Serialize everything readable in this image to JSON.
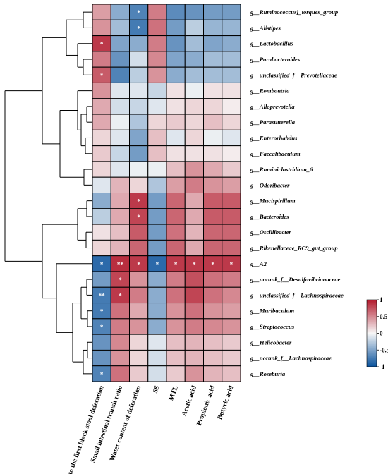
{
  "colors": {
    "negative": "#08519c",
    "neutral": "#f7f7f7",
    "positive": "#b2182b",
    "cell_border": "#000000",
    "star": "#ffffff",
    "dendrogram": "#000000"
  },
  "chart_data": {
    "type": "heatmap",
    "title": "",
    "rows": [
      "g__Ruminococcus]_torques_group",
      "g__Alistipes",
      "g__Lactobacillus",
      "g__Parabacteroides",
      "g__unclassified_f__Prevotellaceae",
      "g__Romboutsia",
      "g__Alloprevotella",
      "g__Parasutterella",
      "g__Enterorhabdus",
      "g__Faecalibaculum",
      "g__Ruminiclostridium_6",
      "g__Odoribacter",
      "g__Mucispirillum",
      "g__Bacteroides",
      "g__Oscillibacter",
      "g__Rikenellaceae_RC9_gut_group",
      "g__A2",
      "g__norank_f__Desulfovibrionaceae",
      "g__unclassified_f__Lachnospiraceae",
      "g__Muribaculum",
      "g__Streptococcus",
      "g__Helicobacter",
      "g__norank_f__Lachnospiraceae",
      "g__Roseburia"
    ],
    "columns": [
      "Time to the first black stool defecation",
      "Small intestinal transit ratio",
      "Water content of defecation",
      "SS",
      "MTL",
      "Acetic acid",
      "Propionic acid",
      "Butyric acid"
    ],
    "values": [
      [
        0.4,
        -0.45,
        -0.7,
        0.55,
        -0.65,
        -0.6,
        -0.55,
        -0.55
      ],
      [
        0.45,
        -0.35,
        -0.75,
        0.6,
        -0.55,
        -0.25,
        -0.4,
        -0.4
      ],
      [
        0.85,
        -0.5,
        -0.45,
        0.55,
        -0.6,
        -0.35,
        -0.5,
        -0.45
      ],
      [
        0.55,
        -0.6,
        -0.15,
        0.5,
        -0.5,
        -0.45,
        -0.35,
        -0.35
      ],
      [
        0.7,
        -0.7,
        -0.25,
        0.45,
        -0.45,
        -0.35,
        -0.35,
        -0.35
      ],
      [
        0.45,
        -0.1,
        -0.1,
        -0.2,
        0.1,
        -0.05,
        0.1,
        0.1
      ],
      [
        0.35,
        -0.15,
        -0.2,
        -0.1,
        0.1,
        0.15,
        0.15,
        0.05
      ],
      [
        0.35,
        -0.05,
        -0.3,
        0.15,
        0.2,
        0.15,
        0.25,
        0.15
      ],
      [
        0.15,
        -0.1,
        -0.5,
        0.25,
        -0.1,
        0.15,
        -0.05,
        -0.1
      ],
      [
        0.2,
        -0.2,
        -0.55,
        0.25,
        0.1,
        0.1,
        0.1,
        0.05
      ],
      [
        0.15,
        -0.1,
        -0.05,
        -0.05,
        0.25,
        0.45,
        0.35,
        0.2
      ],
      [
        -0.1,
        0.3,
        0.15,
        -0.3,
        0.4,
        0.55,
        0.45,
        0.4
      ],
      [
        -0.45,
        0.35,
        0.85,
        -0.55,
        0.65,
        0.35,
        0.7,
        0.7
      ],
      [
        -0.25,
        0.35,
        0.8,
        -0.55,
        0.65,
        0.35,
        0.7,
        0.7
      ],
      [
        0.1,
        0.25,
        0.7,
        -0.55,
        0.6,
        0.3,
        0.65,
        0.65
      ],
      [
        0.15,
        0.3,
        0.65,
        -0.55,
        0.65,
        0.35,
        0.65,
        0.65
      ],
      [
        -0.85,
        0.9,
        0.85,
        -0.85,
        0.85,
        0.85,
        0.85,
        0.85
      ],
      [
        -0.55,
        0.8,
        0.45,
        -0.45,
        0.55,
        0.75,
        0.6,
        0.55
      ],
      [
        -0.75,
        0.85,
        0.55,
        -0.45,
        0.6,
        0.8,
        0.6,
        0.5
      ],
      [
        -0.75,
        0.6,
        0.35,
        -0.45,
        0.45,
        0.6,
        0.45,
        0.4
      ],
      [
        -0.7,
        0.55,
        0.45,
        -0.45,
        0.45,
        0.55,
        0.5,
        0.45
      ],
      [
        -0.6,
        0.5,
        0.15,
        -0.1,
        0.25,
        0.3,
        0.25,
        0.2
      ],
      [
        -0.6,
        0.45,
        0.15,
        -0.15,
        0.25,
        0.3,
        0.25,
        0.2
      ],
      [
        -0.7,
        0.6,
        0.2,
        -0.15,
        0.2,
        0.45,
        0.3,
        0.25
      ]
    ],
    "significance": [
      [
        "",
        "",
        "*",
        "",
        "",
        "",
        "",
        ""
      ],
      [
        "",
        "",
        "*",
        "",
        "",
        "",
        "",
        ""
      ],
      [
        "*",
        "",
        "",
        "",
        "",
        "",
        "",
        ""
      ],
      [
        "",
        "",
        "",
        "",
        "",
        "",
        "",
        ""
      ],
      [
        "*",
        "",
        "",
        "",
        "",
        "",
        "",
        ""
      ],
      [
        "",
        "",
        "",
        "",
        "",
        "",
        "",
        ""
      ],
      [
        "",
        "",
        "",
        "",
        "",
        "",
        "",
        ""
      ],
      [
        "",
        "",
        "",
        "",
        "",
        "",
        "",
        ""
      ],
      [
        "",
        "",
        "",
        "",
        "",
        "",
        "",
        ""
      ],
      [
        "",
        "",
        "",
        "",
        "",
        "",
        "",
        ""
      ],
      [
        "",
        "",
        "",
        "",
        "",
        "",
        "",
        ""
      ],
      [
        "",
        "",
        "",
        "",
        "",
        "",
        "",
        ""
      ],
      [
        "",
        "",
        "*",
        "",
        "",
        "",
        "",
        ""
      ],
      [
        "",
        "",
        "*",
        "",
        "",
        "",
        "",
        ""
      ],
      [
        "",
        "",
        "",
        "",
        "",
        "",
        "",
        ""
      ],
      [
        "",
        "",
        "",
        "",
        "",
        "",
        "",
        ""
      ],
      [
        "*",
        "**",
        "*",
        "*",
        "*",
        "*",
        "*",
        "*"
      ],
      [
        "",
        "*",
        "",
        "",
        "",
        "",
        "",
        ""
      ],
      [
        "**",
        "*",
        "",
        "",
        "",
        "",
        "",
        ""
      ],
      [
        "*",
        "",
        "",
        "",
        "",
        "",
        "",
        ""
      ],
      [
        "*",
        "",
        "",
        "",
        "",
        "",
        "",
        ""
      ],
      [
        "",
        "",
        "",
        "",
        "",
        "",
        "",
        ""
      ],
      [
        "",
        "",
        "",
        "",
        "",
        "",
        "",
        ""
      ],
      [
        "*",
        "",
        "",
        "",
        "",
        "",
        "",
        ""
      ]
    ],
    "colorbar": {
      "range": [
        -1,
        1
      ],
      "ticks": [
        1,
        0.5,
        0,
        -0.5,
        -1
      ],
      "tick_labels": [
        "1",
        "0.5",
        "0",
        "-0.5",
        "-1"
      ]
    },
    "dendrogram": {
      "type": "row",
      "position": "left"
    },
    "grid": true
  }
}
